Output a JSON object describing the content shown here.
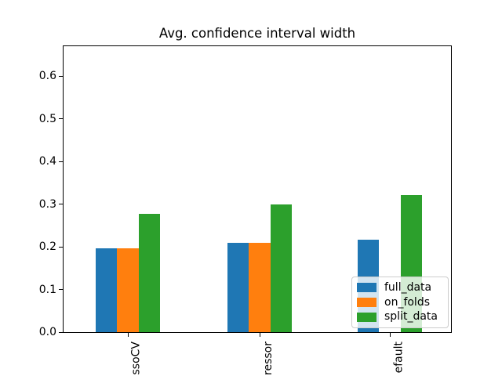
{
  "chart_data": {
    "type": "bar",
    "title": "Avg. confidence interval width",
    "categories": [
      "ssoCV",
      "ressor",
      "efault"
    ],
    "series": [
      {
        "name": "full_data",
        "color": "#1f77b4",
        "values": [
          0.196,
          0.209,
          0.216
        ]
      },
      {
        "name": "on_folds",
        "color": "#ff7f0e",
        "values": [
          0.196,
          0.209,
          0.0
        ]
      },
      {
        "name": "split_data",
        "color": "#2ca02c",
        "values": [
          0.277,
          0.299,
          0.322
        ]
      }
    ],
    "xlabel": "",
    "ylabel": "",
    "ylim": [
      0.0,
      0.67
    ],
    "yticks": [
      "0.0",
      "0.1",
      "0.2",
      "0.3",
      "0.4",
      "0.5",
      "0.6"
    ],
    "grid": false,
    "legend": {
      "position": "lower right",
      "entries": [
        "full_data",
        "on_folds",
        "split_data"
      ]
    },
    "layout_hints": {
      "xtick_label_rotation_deg": 90,
      "xtick_labels_clipped_at_figure_bottom": true,
      "bars_touch_within_group": true
    }
  },
  "colors": {
    "background": "#ffffff",
    "spine": "#000000",
    "legend_border": "#cccccc",
    "text": "#000000"
  }
}
